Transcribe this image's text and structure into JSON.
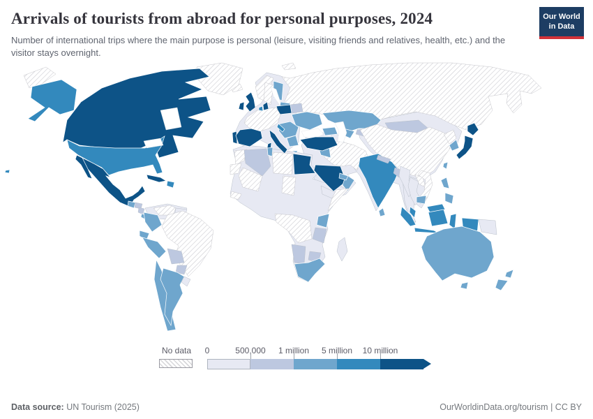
{
  "header": {
    "title": "Arrivals of tourists from abroad for personal purposes, 2024",
    "subtitle": "Number of international trips where the main purpose is personal (leisure, visiting friends and relatives, health, etc.) and the visitor stays overnight.",
    "logo_line1": "Our World",
    "logo_line2": "in Data",
    "logo_navy": "#1d3d63",
    "logo_red": "#d13239"
  },
  "legend": {
    "no_data_label": "No data",
    "tick_labels": [
      "0",
      "500,000",
      "1 million",
      "5 million",
      "10 million"
    ],
    "bin_colors": [
      "#e7e9f3",
      "#bdc8e0",
      "#6fa6cd",
      "#3389bd",
      "#0d5387"
    ],
    "bin_labels": [
      "0–500,000",
      "500,000–1 million",
      "1–5 million",
      "5–10 million",
      "10 million+"
    ]
  },
  "footer": {
    "source_label": "Data source:",
    "source_value": "UN Tourism (2025)",
    "link_text": "OurWorldinData.org/tourism | CC BY"
  },
  "chart_data": {
    "type": "choropleth",
    "title": "Arrivals of tourists from abroad for personal purposes",
    "year": 2024,
    "unit": "international overnight arrivals where the main purpose is personal",
    "legend_bins": [
      {
        "label": "0–500,000",
        "color": "#e7e9f3"
      },
      {
        "label": "500,000–1 million",
        "color": "#bdc8e0"
      },
      {
        "label": "1–5 million",
        "color": "#6fa6cd"
      },
      {
        "label": "5–10 million",
        "color": "#3389bd"
      },
      {
        "label": "10 million+",
        "color": "#0d5387"
      },
      {
        "label": "No data",
        "color": "hatched"
      }
    ],
    "regions": [
      {
        "name": "greenland",
        "bin": 0
      },
      {
        "name": "russia",
        "bin": 0
      },
      {
        "name": "russia-west",
        "bin": 0
      },
      {
        "name": "svalbard",
        "bin": 0
      },
      {
        "name": "iceland",
        "bin": 0
      },
      {
        "name": "norway",
        "bin": 0
      },
      {
        "name": "sweden",
        "bin": 0
      },
      {
        "name": "france-germany",
        "bin": 0
      },
      {
        "name": "morocco",
        "bin": 0
      },
      {
        "name": "western-sahara",
        "bin": 0
      },
      {
        "name": "libya",
        "bin": 0
      },
      {
        "name": "mali",
        "bin": 0
      },
      {
        "name": "chad",
        "bin": 0
      },
      {
        "name": "central-africa",
        "bin": 0
      },
      {
        "name": "somalia",
        "bin": 0
      },
      {
        "name": "guinea",
        "bin": 0
      },
      {
        "name": "brazil",
        "bin": 0
      },
      {
        "name": "venezuela",
        "bin": 0
      },
      {
        "name": "iran-afghanistan-pakistan",
        "bin": 0
      },
      {
        "name": "china",
        "bin": 0
      },
      {
        "name": "north-korea",
        "bin": 0
      },
      {
        "name": "vietnam",
        "bin": 0
      },
      {
        "name": "laos",
        "bin": 0
      },
      {
        "name": "europe-other",
        "bin": 1
      },
      {
        "name": "middle-east-other",
        "bin": 1
      },
      {
        "name": "south-asia-other",
        "bin": 1
      },
      {
        "name": "southeast-asia-other",
        "bin": 1
      },
      {
        "name": "east-asia-other",
        "bin": 1
      },
      {
        "name": "africa-other",
        "bin": 1
      },
      {
        "name": "south-america-other",
        "bin": 1
      },
      {
        "name": "guyanas",
        "bin": 1
      },
      {
        "name": "uruguay",
        "bin": 1
      },
      {
        "name": "madagascar",
        "bin": 1
      },
      {
        "name": "papua-new-guinea",
        "bin": 1
      },
      {
        "name": "myanmar",
        "bin": 1
      },
      {
        "name": "thailand",
        "bin": 1
      },
      {
        "name": "turkmenistan",
        "bin": 1
      },
      {
        "name": "yemen",
        "bin": 1
      },
      {
        "name": "algeria",
        "bin": 2
      },
      {
        "name": "honduras",
        "bin": 2
      },
      {
        "name": "nicaragua",
        "bin": 2
      },
      {
        "name": "bolivia",
        "bin": 2
      },
      {
        "name": "paraguay",
        "bin": 2
      },
      {
        "name": "belarus",
        "bin": 2
      },
      {
        "name": "mongolia",
        "bin": 2
      },
      {
        "name": "kyrgyzstan-tajikistan",
        "bin": 2
      },
      {
        "name": "nepal",
        "bin": 2
      },
      {
        "name": "bangladesh",
        "bin": 2
      },
      {
        "name": "tanzania",
        "bin": 2
      },
      {
        "name": "zimbabwe",
        "bin": 2
      },
      {
        "name": "namibia",
        "bin": 2
      },
      {
        "name": "guatemala",
        "bin": 3
      },
      {
        "name": "costa-rica",
        "bin": 3
      },
      {
        "name": "panama",
        "bin": 3
      },
      {
        "name": "colombia",
        "bin": 3
      },
      {
        "name": "ecuador",
        "bin": 3
      },
      {
        "name": "peru",
        "bin": 3
      },
      {
        "name": "chile",
        "bin": 3
      },
      {
        "name": "argentina",
        "bin": 3
      },
      {
        "name": "finland",
        "bin": 3
      },
      {
        "name": "baltic-states",
        "bin": 3
      },
      {
        "name": "ukraine",
        "bin": 3
      },
      {
        "name": "central-europe",
        "bin": 3
      },
      {
        "name": "greece",
        "bin": 3
      },
      {
        "name": "caucasus",
        "bin": 3
      },
      {
        "name": "kazakhstan",
        "bin": 3
      },
      {
        "name": "uzbekistan",
        "bin": 3
      },
      {
        "name": "iraq",
        "bin": 3
      },
      {
        "name": "oman",
        "bin": 3
      },
      {
        "name": "united-arab-emirates",
        "bin": 3
      },
      {
        "name": "south-korea",
        "bin": 3
      },
      {
        "name": "taiwan",
        "bin": 3
      },
      {
        "name": "sri-lanka",
        "bin": 3
      },
      {
        "name": "cambodia",
        "bin": 3
      },
      {
        "name": "philippines",
        "bin": 3
      },
      {
        "name": "australia",
        "bin": 3
      },
      {
        "name": "new-zealand",
        "bin": 3
      },
      {
        "name": "kenya",
        "bin": 3
      },
      {
        "name": "south-africa",
        "bin": 3
      },
      {
        "name": "tunisia",
        "bin": 3
      },
      {
        "name": "united-states",
        "bin": 4
      },
      {
        "name": "dominican-republic",
        "bin": 4
      },
      {
        "name": "netherlands",
        "bin": 4
      },
      {
        "name": "croatia",
        "bin": 4
      },
      {
        "name": "india",
        "bin": 4
      },
      {
        "name": "malaysia",
        "bin": 4
      },
      {
        "name": "indonesia",
        "bin": 4
      },
      {
        "name": "canada",
        "bin": 5
      },
      {
        "name": "mexico",
        "bin": 5
      },
      {
        "name": "cuba",
        "bin": 5
      },
      {
        "name": "united-kingdom",
        "bin": 5
      },
      {
        "name": "ireland",
        "bin": 5
      },
      {
        "name": "denmark",
        "bin": 5
      },
      {
        "name": "portugal",
        "bin": 5
      },
      {
        "name": "spain",
        "bin": 5
      },
      {
        "name": "italy",
        "bin": 5
      },
      {
        "name": "poland",
        "bin": 5
      },
      {
        "name": "turkey",
        "bin": 5
      },
      {
        "name": "egypt",
        "bin": 5
      },
      {
        "name": "saudi-arabia",
        "bin": 5
      },
      {
        "name": "japan",
        "bin": 5
      }
    ]
  }
}
